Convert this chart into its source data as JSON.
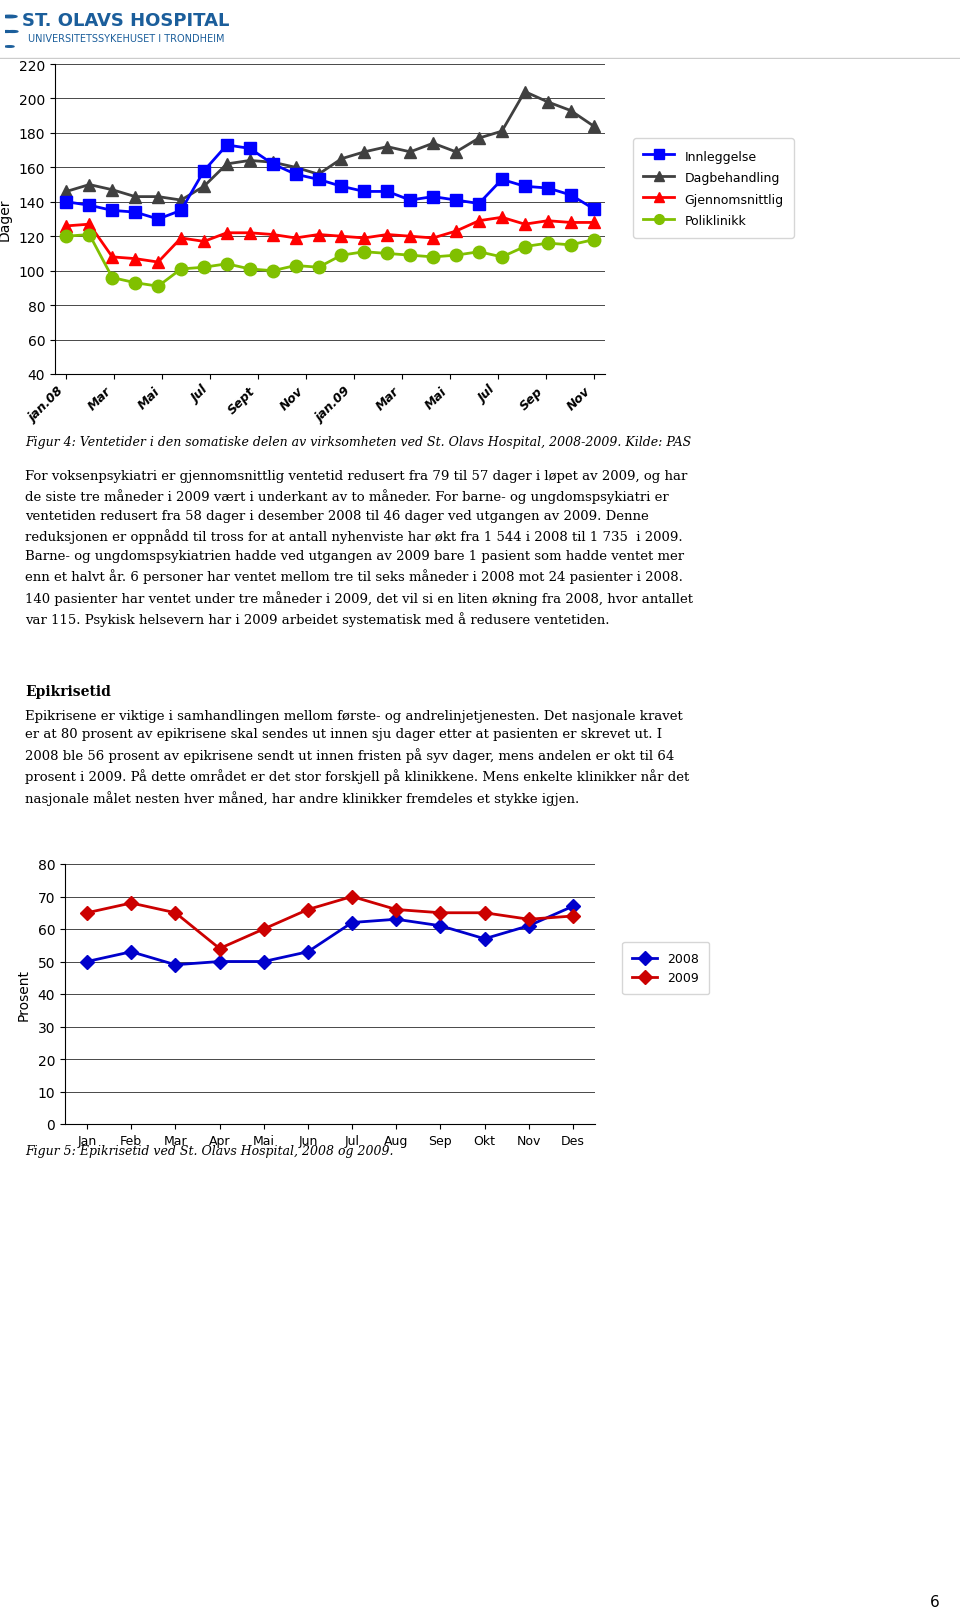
{
  "chart1": {
    "ylabel": "Dager",
    "ylim": [
      40,
      220
    ],
    "yticks": [
      40,
      60,
      80,
      100,
      120,
      140,
      160,
      180,
      200,
      220
    ],
    "xlabels": [
      "jan.08",
      "Mar",
      "Mai",
      "Jul",
      "Sept",
      "Nov",
      "jan.09",
      "Mar",
      "Mai",
      "Jul",
      "Sep",
      "Nov"
    ],
    "innleggelse": [
      140,
      138,
      135,
      134,
      130,
      135,
      158,
      173,
      171,
      162,
      156,
      153,
      149,
      146,
      146,
      141,
      143,
      141,
      139,
      153,
      149,
      148,
      144,
      136
    ],
    "dagbehandling": [
      146,
      150,
      147,
      143,
      143,
      141,
      149,
      162,
      164,
      163,
      160,
      156,
      165,
      169,
      172,
      169,
      174,
      169,
      177,
      181,
      204,
      198,
      193,
      184
    ],
    "gjennomsnittlig": [
      126,
      127,
      108,
      107,
      105,
      119,
      117,
      122,
      122,
      121,
      119,
      121,
      120,
      119,
      121,
      120,
      119,
      123,
      129,
      131,
      127,
      129,
      128,
      128
    ],
    "poliklinikk": [
      120,
      121,
      96,
      93,
      91,
      101,
      102,
      104,
      101,
      100,
      103,
      102,
      109,
      111,
      110,
      109,
      108,
      109,
      111,
      108,
      114,
      116,
      115,
      118
    ],
    "colors": {
      "innleggelse": "#0000FF",
      "dagbehandling": "#404040",
      "gjennomsnittlig": "#FF0000",
      "poliklinikk": "#80C000"
    }
  },
  "fig4_caption": "Figur 4: Ventetider i den somatiske delen av virksomheten ved St. Olavs Hospital, 2008-2009. Kilde: PAS",
  "body_text": "For voksenpsykiatri er gjennomsnittlig ventetid redusert fra 79 til 57 dager i løpet av 2009, og har\nde siste tre måneder i 2009 vært i underkant av to måneder. For barne- og ungdomspsykiatri er\nventetiden redusert fra 58 dager i desember 2008 til 46 dager ved utgangen av 2009. Denne\nreduksjonen er oppnådd til tross for at antall nyhenviste har økt fra 1 544 i 2008 til 1 735  i 2009.\nBarne- og ungdomspsykiatrien hadde ved utgangen av 2009 bare 1 pasient som hadde ventet mer\nenn et halvt år. 6 personer har ventet mellom tre til seks måneder i 2008 mot 24 pasienter i 2008.\n140 pasienter har ventet under tre måneder i 2009, det vil si en liten økning fra 2008, hvor antallet\nvar 115. Psykisk helsevern har i 2009 arbeidet systematisk med å redusere ventetiden.",
  "epikris_title": "Epikrisetid",
  "epikris_text": "Epikrisene er viktige i samhandlingen mellom første- og andrelinjetjenesten. Det nasjonale kravet\ner at 80 prosent av epikrisene skal sendes ut innen sju dager etter at pasienten er skrevet ut. I\n2008 ble 56 prosent av epikrisene sendt ut innen fristen på syv dager, mens andelen er okt til 64\nprosent i 2009. På dette området er det stor forskjell på klinikkene. Mens enkelte klinikker når det\nnasjonale målet nesten hver måned, har andre klinikker fremdeles et stykke igjen.",
  "chart2": {
    "ylabel": "Prosent",
    "ylim": [
      0,
      80
    ],
    "yticks": [
      0,
      10,
      20,
      30,
      40,
      50,
      60,
      70,
      80
    ],
    "xlabels": [
      "Jan",
      "Feb",
      "Mar",
      "Apr",
      "Mai",
      "Jun",
      "Jul",
      "Aug",
      "Sep",
      "Okt",
      "Nov",
      "Des"
    ],
    "series_2008": [
      50,
      53,
      49,
      50,
      50,
      53,
      62,
      63,
      61,
      57,
      61,
      67
    ],
    "series_2009": [
      65,
      68,
      65,
      54,
      60,
      66,
      70,
      66,
      65,
      65,
      63,
      64
    ],
    "colors": {
      "2008": "#0000CC",
      "2009": "#CC0000"
    }
  },
  "fig5_caption": "Figur 5: Epikrisetid ved St. Olavs Hospital, 2008 og 2009.",
  "page_number": "6",
  "header_color": "#1B5E9B",
  "header_title": "ST. OLAVS HOSPITAL",
  "header_subtitle": "UNIVERSITETSSYKEHUSET I TRONDHEIM"
}
